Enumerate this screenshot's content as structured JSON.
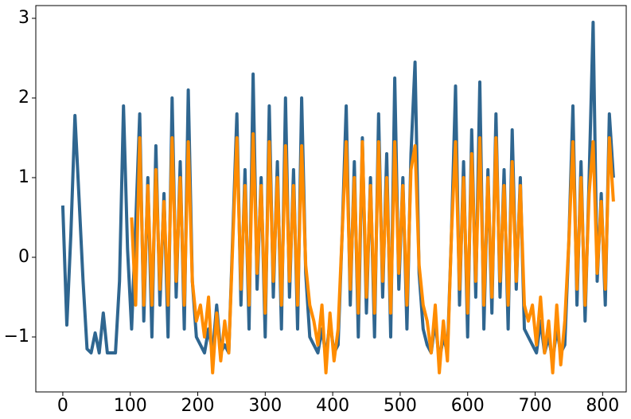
{
  "chart_data": {
    "type": "line",
    "x": [
      0,
      6,
      12,
      18,
      24,
      30,
      36,
      42,
      48,
      54,
      60,
      66,
      72,
      78,
      84,
      90,
      96,
      102,
      108,
      114,
      120,
      126,
      132,
      138,
      144,
      150,
      156,
      162,
      168,
      174,
      180,
      186,
      192,
      198,
      204,
      210,
      216,
      222,
      228,
      234,
      240,
      246,
      252,
      258,
      264,
      270,
      276,
      282,
      288,
      294,
      300,
      306,
      312,
      318,
      324,
      330,
      336,
      342,
      348,
      354,
      360,
      366,
      372,
      378,
      384,
      390,
      396,
      402,
      408,
      414,
      420,
      426,
      432,
      438,
      444,
      450,
      456,
      462,
      468,
      474,
      480,
      486,
      492,
      498,
      504,
      510,
      516,
      522,
      528,
      534,
      540,
      546,
      552,
      558,
      564,
      570,
      576,
      582,
      588,
      594,
      600,
      606,
      612,
      618,
      624,
      630,
      636,
      642,
      648,
      654,
      660,
      666,
      672,
      678,
      684,
      690,
      696,
      702,
      708,
      714,
      720,
      726,
      732,
      738,
      744,
      750,
      756,
      762,
      768,
      774,
      780,
      786,
      792,
      798,
      804,
      810,
      816
    ],
    "series": [
      {
        "color": "#2f6690",
        "values": [
          0.65,
          -0.85,
          0.3,
          1.78,
          0.75,
          -0.3,
          -1.15,
          -1.2,
          -0.95,
          -1.2,
          -0.7,
          -1.2,
          -1.2,
          -1.2,
          -0.3,
          1.9,
          0.1,
          -0.9,
          0.4,
          1.8,
          -0.8,
          1.0,
          -1.0,
          1.4,
          -0.6,
          0.8,
          -1.0,
          2.0,
          -0.5,
          1.2,
          -0.9,
          2.1,
          -0.3,
          -1.0,
          -1.1,
          -1.2,
          -0.9,
          -1.2,
          -0.6,
          -1.2,
          -1.1,
          -1.2,
          0.3,
          1.8,
          -0.6,
          1.1,
          -0.9,
          2.3,
          -0.4,
          1.0,
          -1.0,
          1.9,
          -0.5,
          1.2,
          -0.9,
          2.0,
          -0.5,
          1.1,
          -0.9,
          2.0,
          -0.2,
          -1.0,
          -1.1,
          -1.2,
          -0.9,
          -1.25,
          -0.8,
          -1.2,
          -1.1,
          0.3,
          1.9,
          -0.6,
          1.2,
          -1.0,
          1.5,
          -0.7,
          1.0,
          -1.0,
          1.8,
          -0.5,
          1.3,
          -1.0,
          2.25,
          -0.4,
          1.0,
          -0.9,
          1.3,
          2.45,
          -0.2,
          -0.9,
          -1.1,
          -1.2,
          -0.8,
          -1.3,
          -1.0,
          -1.2,
          0.3,
          2.15,
          -0.6,
          1.2,
          -1.0,
          1.6,
          -0.5,
          2.2,
          -0.9,
          1.1,
          -0.7,
          1.8,
          -0.5,
          1.1,
          -0.9,
          1.6,
          -0.4,
          1.0,
          -0.9,
          -1.0,
          -1.1,
          -1.2,
          -0.8,
          -1.2,
          -1.0,
          -1.3,
          -0.9,
          -1.2,
          -1.1,
          0.2,
          1.9,
          -0.6,
          1.2,
          -0.8,
          1.0,
          2.95,
          -0.3,
          0.8,
          -0.6,
          1.8,
          1.0
        ]
      },
      {
        "color": "#ff8c00",
        "values": [
          null,
          null,
          null,
          null,
          null,
          null,
          null,
          null,
          null,
          null,
          null,
          null,
          null,
          null,
          null,
          null,
          null,
          0.5,
          -0.6,
          1.5,
          -0.6,
          0.9,
          -0.6,
          1.1,
          -0.4,
          0.7,
          -0.6,
          1.5,
          -0.3,
          1.0,
          -0.6,
          1.45,
          -0.3,
          -0.8,
          -0.6,
          -1.0,
          -0.5,
          -1.45,
          -0.7,
          -1.3,
          -0.8,
          -1.2,
          0.2,
          1.5,
          -0.4,
          0.9,
          -0.6,
          1.55,
          -0.2,
          0.9,
          -0.7,
          1.45,
          -0.3,
          1.0,
          -0.6,
          1.4,
          -0.3,
          0.9,
          -0.6,
          1.4,
          -0.1,
          -0.6,
          -0.8,
          -1.1,
          -0.6,
          -1.45,
          -0.7,
          -1.3,
          -0.9,
          0.3,
          1.45,
          -0.4,
          1.0,
          -0.7,
          1.45,
          -0.5,
          0.9,
          -0.7,
          1.45,
          -0.3,
          1.0,
          -0.7,
          1.45,
          -0.2,
          0.9,
          -0.6,
          1.1,
          1.4,
          -0.1,
          -0.6,
          -0.8,
          -1.2,
          -0.6,
          -1.45,
          -0.8,
          -1.3,
          0.3,
          1.45,
          -0.4,
          1.0,
          -0.7,
          1.3,
          -0.3,
          1.5,
          -0.6,
          1.0,
          -0.5,
          1.5,
          -0.3,
          0.9,
          -0.6,
          1.2,
          -0.3,
          0.9,
          -0.6,
          -0.8,
          -0.6,
          -1.1,
          -0.5,
          -1.2,
          -0.8,
          -1.45,
          -0.6,
          -1.35,
          -0.8,
          0.2,
          1.45,
          -0.4,
          1.0,
          -0.6,
          0.8,
          1.45,
          -0.2,
          0.7,
          -0.4,
          1.5,
          0.7
        ]
      }
    ],
    "xlim": [
      -40,
      835
    ],
    "ylim": [
      -1.69,
      3.16
    ],
    "xticks": [
      0,
      100,
      200,
      300,
      400,
      500,
      600,
      700,
      800
    ],
    "yticks": [
      {
        "value": -1,
        "label": "−1"
      },
      0,
      1,
      2,
      3
    ]
  }
}
